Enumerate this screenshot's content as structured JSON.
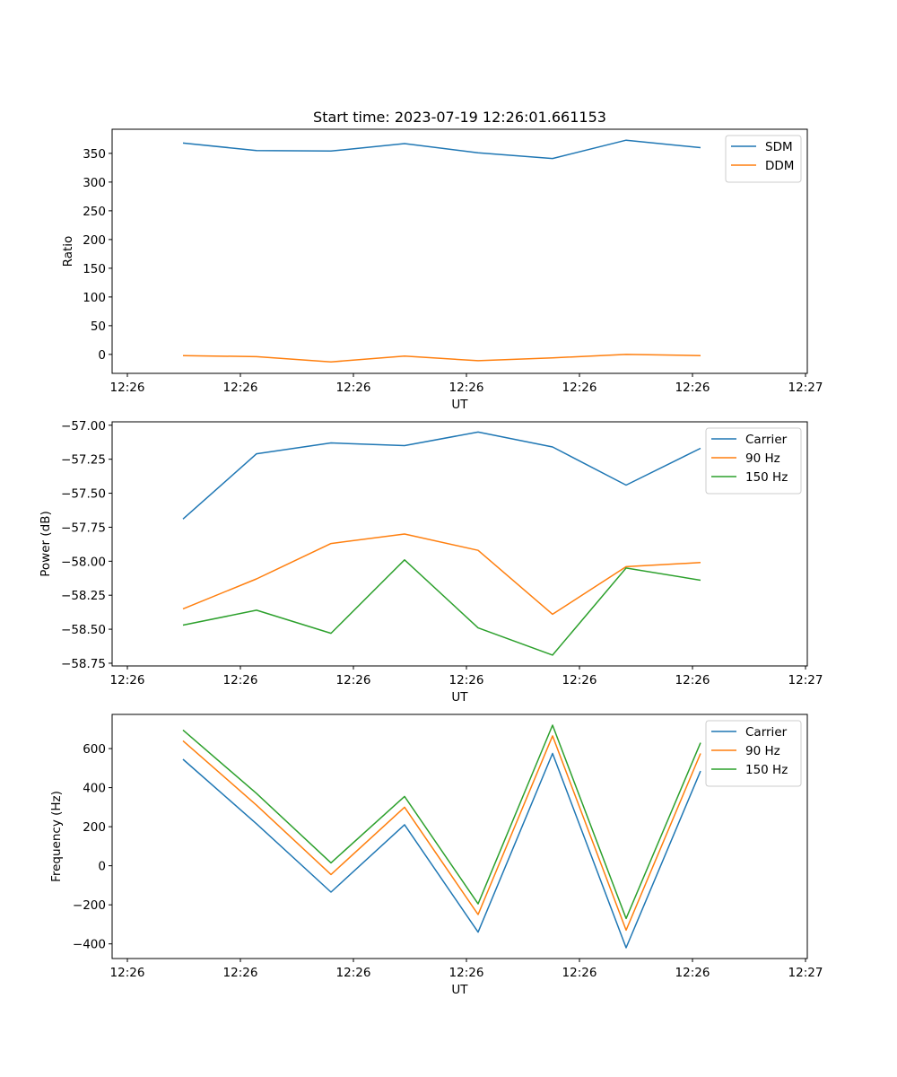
{
  "chart_data": [
    {
      "type": "line",
      "title": "Start time: 2023-07-19 12:26:01.661153",
      "xlabel": "UT",
      "ylabel": "Ratio",
      "x_tick_labels": [
        "12:26",
        "12:26",
        "12:26",
        "12:26",
        "12:26",
        "12:26",
        "12:27"
      ],
      "y_ticks": [
        0,
        50,
        100,
        150,
        200,
        250,
        300,
        350
      ],
      "ylim": [
        -33,
        392
      ],
      "legend_position": "top-right",
      "series": [
        {
          "name": "SDM",
          "color": "#1f77b4",
          "values": [
            368,
            355,
            354,
            367,
            351,
            341,
            373,
            360
          ]
        },
        {
          "name": "DDM",
          "color": "#ff7f0e",
          "values": [
            -2,
            -4,
            -13,
            -3,
            -11,
            -6,
            0,
            -2
          ]
        }
      ]
    },
    {
      "type": "line",
      "title": "",
      "xlabel": "UT",
      "ylabel": "Power (dB)",
      "x_tick_labels": [
        "12:26",
        "12:26",
        "12:26",
        "12:26",
        "12:26",
        "12:26",
        "12:27"
      ],
      "y_ticks": [
        -58.75,
        -58.5,
        -58.25,
        -58.0,
        -57.75,
        -57.5,
        -57.25,
        -57.0
      ],
      "y_tick_labels": [
        "−58.75",
        "−58.50",
        "−58.25",
        "−58.00",
        "−57.75",
        "−57.50",
        "−57.25",
        "−57.00"
      ],
      "ylim": [
        -58.77,
        -56.975
      ],
      "legend_position": "top-right",
      "series": [
        {
          "name": "Carrier",
          "color": "#1f77b4",
          "values": [
            -57.69,
            -57.21,
            -57.13,
            -57.15,
            -57.05,
            -57.16,
            -57.44,
            -57.17
          ]
        },
        {
          "name": "90 Hz",
          "color": "#ff7f0e",
          "values": [
            -58.35,
            -58.13,
            -57.87,
            -57.8,
            -57.92,
            -58.39,
            -58.04,
            -58.01
          ]
        },
        {
          "name": "150 Hz",
          "color": "#2ca02c",
          "values": [
            -58.47,
            -58.36,
            -58.53,
            -57.99,
            -58.49,
            -58.69,
            -58.05,
            -58.14
          ]
        }
      ]
    },
    {
      "type": "line",
      "title": "",
      "xlabel": "UT",
      "ylabel": "Frequency (Hz)",
      "x_tick_labels": [
        "12:26",
        "12:26",
        "12:26",
        "12:26",
        "12:26",
        "12:26",
        "12:27"
      ],
      "y_ticks": [
        -400,
        -200,
        0,
        200,
        400,
        600
      ],
      "y_tick_labels": [
        "−400",
        "−200",
        "0",
        "200",
        "400",
        "600"
      ],
      "ylim": [
        -475,
        775
      ],
      "legend_position": "top-right",
      "series": [
        {
          "name": "Carrier",
          "color": "#1f77b4",
          "values": [
            545,
            215,
            -135,
            210,
            -340,
            575,
            -420,
            485
          ]
        },
        {
          "name": "90 Hz",
          "color": "#ff7f0e",
          "values": [
            640,
            310,
            -45,
            300,
            -250,
            665,
            -330,
            575
          ]
        },
        {
          "name": "150 Hz",
          "color": "#2ca02c",
          "values": [
            695,
            370,
            15,
            355,
            -195,
            720,
            -270,
            630
          ]
        }
      ]
    }
  ]
}
